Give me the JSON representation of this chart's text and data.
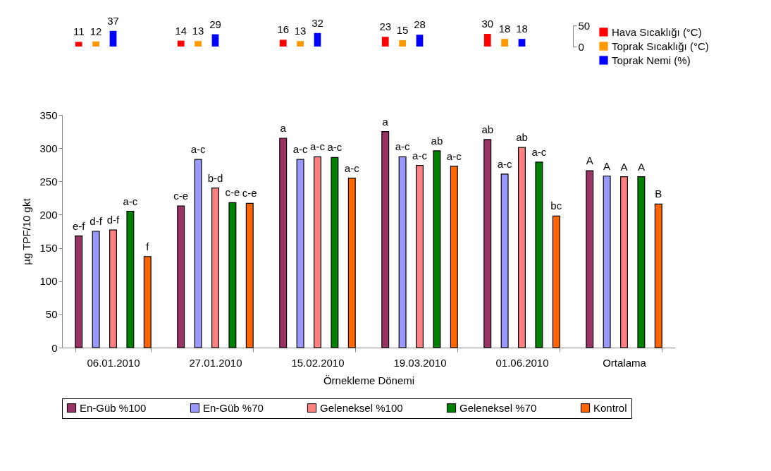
{
  "chart_data": [
    {
      "type": "bar",
      "categories": [
        null,
        null,
        null,
        null,
        null
      ],
      "series": [
        {
          "name": "Hava Sıcaklığı (°C)",
          "color": "#ff0000",
          "values": [
            11,
            14,
            16,
            23,
            30
          ]
        },
        {
          "name": "Toprak Sıcaklığı (°C)",
          "color": "#ff9900",
          "values": [
            12,
            13,
            13,
            15,
            18
          ]
        },
        {
          "name": "Toprak Nemi (%)",
          "color": "#0000ff",
          "values": [
            37,
            29,
            32,
            28,
            18
          ]
        }
      ],
      "ylim": [
        0,
        50
      ],
      "yticks": [
        0,
        50
      ],
      "data_labels": true,
      "legend": "right",
      "grid": false
    },
    {
      "type": "bar",
      "categories": [
        "06.01.2010",
        "27.01.2010",
        "15.02.2010",
        "19.03.2010",
        "01.06.2010",
        "Ortalama"
      ],
      "xlabel": "Örnekleme Dönemi",
      "ylabel": "µg TPF/10 gkt",
      "series": [
        {
          "name": "En-Güb %100",
          "color": "#993366",
          "values": [
            168,
            213,
            315,
            325,
            313,
            266
          ],
          "value_labels": [
            "e-f",
            "c-e",
            "a",
            "a",
            "ab",
            "A"
          ]
        },
        {
          "name": "En-Güb %70",
          "color": "#9999ff",
          "values": [
            175,
            283,
            283,
            287,
            261,
            258
          ],
          "value_labels": [
            "d-f",
            "a-c",
            "a-c",
            "a-c",
            "a-c",
            "A"
          ]
        },
        {
          "name": "Geleneksel %100",
          "color": "#ff8080",
          "values": [
            177,
            240,
            287,
            274,
            301,
            257
          ],
          "value_labels": [
            "d-f",
            "b-d",
            "a-c",
            "a-c",
            "ab",
            "A"
          ]
        },
        {
          "name": "Geleneksel %70",
          "color": "#008000",
          "values": [
            205,
            218,
            286,
            296,
            279,
            257
          ],
          "value_labels": [
            "a-c",
            "c-e",
            "a-c",
            "ab",
            "a-c",
            "A"
          ]
        },
        {
          "name": "Kontrol",
          "color": "#ff6600",
          "values": [
            137,
            217,
            255,
            273,
            198,
            216
          ],
          "value_labels": [
            "f",
            "c-e",
            "a-c",
            "a-c",
            "bc",
            "B"
          ]
        }
      ],
      "ylim": [
        0,
        350
      ],
      "yticks": [
        0,
        50,
        100,
        150,
        200,
        250,
        300,
        350
      ],
      "legend": "bottom",
      "grid": false
    }
  ]
}
